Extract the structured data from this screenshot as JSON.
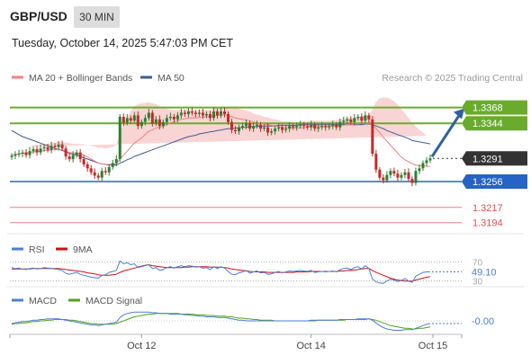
{
  "header": {
    "pair": "GBP/USD",
    "timeframe": "30 MIN",
    "timestamp": "Tuesday, October 14, 2025 5:47:03 PM CET",
    "credit": "Research © 2025 Trading Central"
  },
  "colors": {
    "candle_up": "#2e7d32",
    "candle_down": "#c62828",
    "bollinger_fill": "#f7c6c6",
    "ma20": "#f08080",
    "ma50": "#3f5b95",
    "resistance": "#6aab2e",
    "support": "#2563c7",
    "target": "#d9534f",
    "rsi": "#4a7fd4",
    "rsi_ma": "#cc1111",
    "macd": "#4a7fd4",
    "macd_signal": "#55a020",
    "arrow": "#2f5fa0",
    "current_price_bg": "#333333"
  },
  "legend": {
    "price": [
      {
        "label": "MA 20 + Bollinger Bands",
        "color": "#f08080"
      },
      {
        "label": "MA 50",
        "color": "#3f5b95"
      }
    ],
    "rsi": [
      {
        "label": "RSI",
        "color": "#4a7fd4"
      },
      {
        "label": "9MA",
        "color": "#cc1111"
      }
    ],
    "macd": [
      {
        "label": "MACD",
        "color": "#4a7fd4"
      },
      {
        "label": "MACD Signal",
        "color": "#55a020"
      }
    ]
  },
  "chart_data": [
    {
      "type": "candlestick",
      "title": "GBP/USD 30 MIN",
      "ylim": [
        1.318,
        1.34
      ],
      "x_ticks": [
        "Oct 12",
        "Oct 14",
        "Oct 15"
      ],
      "levels": [
        {
          "label": "1.3368",
          "value": 1.3368,
          "kind": "resistance",
          "style": "filled-tag"
        },
        {
          "label": "1.3344",
          "value": 1.3344,
          "kind": "resistance",
          "style": "filled-tag"
        },
        {
          "label": "1.3291",
          "value": 1.3291,
          "kind": "current",
          "style": "dark-tag"
        },
        {
          "label": "1.3256",
          "value": 1.3256,
          "kind": "support",
          "style": "filled-tag"
        },
        {
          "label": "1.3217",
          "value": 1.3217,
          "kind": "target",
          "style": "text"
        },
        {
          "label": "1.3194",
          "value": 1.3194,
          "kind": "target",
          "style": "text"
        }
      ],
      "close": [
        1.3295,
        1.3297,
        1.3298,
        1.33,
        1.3296,
        1.3302,
        1.3305,
        1.33,
        1.3306,
        1.3308,
        1.3304,
        1.331,
        1.3308,
        1.3312,
        1.3306,
        1.3294,
        1.329,
        1.3296,
        1.33,
        1.329,
        1.3282,
        1.3276,
        1.327,
        1.3265,
        1.3262,
        1.3272,
        1.327,
        1.3278,
        1.3284,
        1.329,
        1.3354,
        1.3345,
        1.3352,
        1.3348,
        1.3356,
        1.334,
        1.3346,
        1.3352,
        1.336,
        1.3344,
        1.335,
        1.334,
        1.3346,
        1.3352,
        1.3354,
        1.335,
        1.3356,
        1.336,
        1.3358,
        1.3362,
        1.336,
        1.3358,
        1.336,
        1.3356,
        1.3358,
        1.3352,
        1.3362,
        1.3356,
        1.3362,
        1.3358,
        1.3346,
        1.3334,
        1.3332,
        1.3338,
        1.334,
        1.3344,
        1.3336,
        1.334,
        1.3342,
        1.3336,
        1.3338,
        1.333,
        1.3332,
        1.3336,
        1.3338,
        1.3334,
        1.3336,
        1.334,
        1.3338,
        1.334,
        1.3342,
        1.334,
        1.3338,
        1.3342,
        1.3336,
        1.3338,
        1.334,
        1.3338,
        1.334,
        1.3342,
        1.3338,
        1.3346,
        1.3348,
        1.335,
        1.3346,
        1.3352,
        1.3354,
        1.3348,
        1.3356,
        1.335,
        1.3298,
        1.3274,
        1.3262,
        1.3258,
        1.3266,
        1.3272,
        1.3268,
        1.3262,
        1.3266,
        1.327,
        1.326,
        1.3254,
        1.3272,
        1.3276,
        1.3284,
        1.3288,
        1.3291
      ],
      "ma20": [
        1.3296,
        1.3297,
        1.3298,
        1.3299,
        1.3299,
        1.33,
        1.3301,
        1.3301,
        1.3302,
        1.3303,
        1.3303,
        1.3304,
        1.3304,
        1.3305,
        1.3304,
        1.3302,
        1.33,
        1.3299,
        1.3299,
        1.3298,
        1.3296,
        1.3293,
        1.329,
        1.3287,
        1.3284,
        1.3283,
        1.3282,
        1.3282,
        1.3282,
        1.3283,
        1.329,
        1.3296,
        1.3302,
        1.3308,
        1.3314,
        1.3318,
        1.3322,
        1.3327,
        1.3332,
        1.3334,
        1.3337,
        1.3338,
        1.334,
        1.3342,
        1.3345,
        1.3346,
        1.3348,
        1.335,
        1.3351,
        1.3352,
        1.3352,
        1.3352,
        1.3353,
        1.3354,
        1.3354,
        1.3354,
        1.3355,
        1.3356,
        1.3356,
        1.3357,
        1.3356,
        1.3354,
        1.3352,
        1.3351,
        1.335,
        1.3349,
        1.3348,
        1.3346,
        1.3345,
        1.3344,
        1.3343,
        1.3342,
        1.3341,
        1.334,
        1.3339,
        1.3338,
        1.3338,
        1.3337,
        1.3337,
        1.3337,
        1.3337,
        1.3338,
        1.3338,
        1.3339,
        1.3339,
        1.3339,
        1.3339,
        1.3339,
        1.3339,
        1.334,
        1.334,
        1.3341,
        1.3341,
        1.3342,
        1.3342,
        1.3343,
        1.3343,
        1.3344,
        1.3344,
        1.3344,
        1.3341,
        1.3336,
        1.333,
        1.3323,
        1.3317,
        1.3311,
        1.3305,
        1.3299,
        1.3293,
        1.3289,
        1.3286,
        1.3283,
        1.3281,
        1.328,
        1.328,
        1.3279,
        1.3279
      ],
      "ma50": [
        1.3333,
        1.333,
        1.3327,
        1.3324,
        1.3322,
        1.332,
        1.3318,
        1.3316,
        1.3314,
        1.3312,
        1.331,
        1.3308,
        1.3306,
        1.3305,
        1.3303,
        1.3301,
        1.3299,
        1.3297,
        1.3296,
        1.3294,
        1.3292,
        1.329,
        1.3288,
        1.3286,
        1.3284,
        1.3283,
        1.3282,
        1.3281,
        1.3281,
        1.3281,
        1.3284,
        1.3286,
        1.3289,
        1.3291,
        1.3294,
        1.3296,
        1.3298,
        1.33,
        1.3302,
        1.3304,
        1.3306,
        1.3308,
        1.331,
        1.3312,
        1.3314,
        1.3316,
        1.3318,
        1.332,
        1.3322,
        1.3324,
        1.3325,
        1.3326,
        1.3328,
        1.3329,
        1.333,
        1.3331,
        1.3332,
        1.3333,
        1.3334,
        1.3335,
        1.3336,
        1.3336,
        1.3337,
        1.3337,
        1.3338,
        1.3338,
        1.3339,
        1.3339,
        1.3339,
        1.334,
        1.334,
        1.334,
        1.334,
        1.334,
        1.3341,
        1.3341,
        1.3341,
        1.3341,
        1.3341,
        1.3341,
        1.3342,
        1.3342,
        1.3342,
        1.3342,
        1.3342,
        1.3342,
        1.3342,
        1.3342,
        1.3342,
        1.3342,
        1.3342,
        1.3342,
        1.3342,
        1.3342,
        1.3342,
        1.3342,
        1.3342,
        1.3342,
        1.3343,
        1.3343,
        1.3342,
        1.334,
        1.3338,
        1.3336,
        1.3333,
        1.3331,
        1.3329,
        1.3327,
        1.3325,
        1.3323,
        1.3321,
        1.3318,
        1.3317,
        1.3316,
        1.3315,
        1.3314,
        1.3313
      ],
      "bollinger_width": [
        0.0012,
        0.0011,
        0.001,
        0.001,
        0.0009,
        0.0009,
        0.001,
        0.001,
        0.001,
        0.001,
        0.001,
        0.0011,
        0.0011,
        0.0012,
        0.0012,
        0.0013,
        0.0014,
        0.0014,
        0.0014,
        0.0015,
        0.0016,
        0.0018,
        0.002,
        0.0022,
        0.0023,
        0.0024,
        0.0024,
        0.0025,
        0.0026,
        0.0028,
        0.004,
        0.0048,
        0.0052,
        0.0055,
        0.0056,
        0.0055,
        0.0052,
        0.0048,
        0.0044,
        0.004,
        0.0036,
        0.0032,
        0.0028,
        0.0024,
        0.002,
        0.0018,
        0.0016,
        0.0015,
        0.0014,
        0.0013,
        0.0012,
        0.0011,
        0.0011,
        0.0011,
        0.001,
        0.001,
        0.0011,
        0.0012,
        0.0012,
        0.0012,
        0.0013,
        0.0014,
        0.0015,
        0.0015,
        0.0015,
        0.0014,
        0.0014,
        0.0013,
        0.0012,
        0.0012,
        0.0011,
        0.0011,
        0.001,
        0.001,
        0.001,
        0.0009,
        0.0009,
        0.0009,
        0.0009,
        0.0009,
        0.0009,
        0.0009,
        0.0009,
        0.0009,
        0.0009,
        0.0009,
        0.0009,
        0.0009,
        0.0009,
        0.0009,
        0.0009,
        0.001,
        0.001,
        0.001,
        0.001,
        0.001,
        0.0011,
        0.0011,
        0.0012,
        0.0012,
        0.0025,
        0.004,
        0.0052,
        0.006,
        0.0066,
        0.007,
        0.0072,
        0.0073,
        0.0072,
        0.007,
        0.0066,
        0.0062,
        0.0058,
        0.0054,
        0.005,
        0.0046
      ],
      "projection": {
        "from": 1.3291,
        "to": 1.3368
      }
    },
    {
      "type": "line",
      "title": "RSI",
      "ylim": [
        20,
        80
      ],
      "levels": [
        70,
        30
      ],
      "level_labels": [
        "70",
        "30"
      ],
      "current_value_label": "49.10",
      "series": [
        {
          "name": "RSI",
          "values": [
            58,
            56,
            57,
            55,
            54,
            56,
            57,
            55,
            56,
            58,
            57,
            56,
            55,
            54,
            52,
            46,
            44,
            46,
            48,
            44,
            42,
            40,
            38,
            37,
            36,
            42,
            43,
            48,
            50,
            52,
            72,
            66,
            68,
            64,
            66,
            58,
            60,
            62,
            64,
            56,
            58,
            52,
            54,
            58,
            60,
            57,
            60,
            62,
            60,
            62,
            61,
            59,
            60,
            57,
            58,
            54,
            60,
            56,
            60,
            57,
            50,
            44,
            43,
            47,
            49,
            52,
            46,
            49,
            51,
            47,
            48,
            44,
            45,
            48,
            50,
            47,
            49,
            51,
            50,
            51,
            52,
            51,
            50,
            52,
            48,
            49,
            50,
            49,
            50,
            51,
            49,
            54,
            56,
            57,
            54,
            58,
            60,
            55,
            62,
            56,
            34,
            28,
            26,
            25,
            30,
            34,
            32,
            29,
            31,
            35,
            30,
            27,
            40,
            44,
            48,
            49,
            49.1
          ]
        },
        {
          "name": "9MA",
          "values": [
            55,
            55,
            55,
            55,
            55,
            55,
            56,
            56,
            56,
            56,
            56,
            56,
            56,
            56,
            55,
            54,
            53,
            52,
            51,
            50,
            49,
            47,
            46,
            45,
            43,
            42,
            42,
            42,
            43,
            44,
            48,
            51,
            53,
            55,
            57,
            59,
            61,
            63,
            64,
            62,
            61,
            60,
            59,
            58,
            58,
            58,
            58,
            58,
            59,
            59,
            60,
            60,
            60,
            60,
            60,
            59,
            59,
            59,
            59,
            58,
            57,
            55,
            54,
            53,
            52,
            51,
            50,
            49,
            49,
            49,
            49,
            48,
            48,
            48,
            48,
            48,
            48,
            48,
            48,
            49,
            49,
            49,
            49,
            50,
            50,
            50,
            50,
            50,
            50,
            50,
            50,
            51,
            51,
            52,
            52,
            53,
            54,
            55,
            56,
            56,
            52,
            48,
            45,
            42,
            39,
            36,
            34,
            32,
            31,
            30,
            30,
            30,
            32,
            34,
            36,
            38,
            39
          ]
        }
      ]
    },
    {
      "type": "line",
      "title": "MACD",
      "ylim": [
        -0.002,
        0.002
      ],
      "zero_label": "-0.00",
      "series": [
        {
          "name": "MACD",
          "values": [
            -0.0004,
            -0.0003,
            -0.0002,
            -0.0001,
            -0.0001,
            0.0,
            0.0001,
            0.0001,
            0.0002,
            0.0002,
            0.0003,
            0.0003,
            0.0003,
            0.0003,
            0.0002,
            0.0001,
            0.0,
            -0.0001,
            -0.0002,
            -0.0003,
            -0.0004,
            -0.0005,
            -0.0006,
            -0.0006,
            -0.0007,
            -0.0006,
            -0.0005,
            -0.0004,
            -0.0003,
            -0.0002,
            0.0005,
            0.0009,
            0.0011,
            0.0012,
            0.0013,
            0.0013,
            0.0013,
            0.0013,
            0.0013,
            0.0012,
            0.0012,
            0.0011,
            0.0011,
            0.0011,
            0.001,
            0.001,
            0.001,
            0.001,
            0.0009,
            0.0009,
            0.0008,
            0.0008,
            0.0007,
            0.0007,
            0.0006,
            0.0006,
            0.0006,
            0.0005,
            0.0005,
            0.0005,
            0.0004,
            0.0003,
            0.0002,
            0.0001,
            0.0001,
            0.0,
            0.0,
            0.0,
            0.0,
            0.0,
            0.0,
            0.0,
            0.0,
            0.0,
            0.0,
            0.0,
            0.0,
            0.0,
            0.0,
            0.0,
            0.0,
            0.0,
            0.0,
            0.0001,
            0.0001,
            0.0001,
            0.0001,
            0.0001,
            0.0001,
            0.0001,
            0.0001,
            0.0002,
            0.0002,
            0.0002,
            0.0002,
            0.0002,
            0.0003,
            0.0003,
            0.0003,
            0.0003,
            0.0001,
            -0.0003,
            -0.0007,
            -0.001,
            -0.0012,
            -0.0013,
            -0.0014,
            -0.0014,
            -0.0014,
            -0.0013,
            -0.0013,
            -0.0013,
            -0.0011,
            -0.0009,
            -0.0007,
            -0.0005,
            -0.0004
          ]
        },
        {
          "name": "MACD Signal",
          "values": [
            -0.0005,
            -0.0004,
            -0.0004,
            -0.0003,
            -0.0003,
            -0.0002,
            -0.0001,
            -0.0001,
            0.0,
            0.0,
            0.0001,
            0.0001,
            0.0002,
            0.0002,
            0.0002,
            0.0002,
            0.0001,
            0.0001,
            0.0,
            -0.0001,
            -0.0002,
            -0.0003,
            -0.0004,
            -0.0004,
            -0.0005,
            -0.0005,
            -0.0005,
            -0.0005,
            -0.0005,
            -0.0004,
            -0.0002,
            0.0,
            0.0002,
            0.0004,
            0.0006,
            0.0007,
            0.0008,
            0.0009,
            0.001,
            0.001,
            0.0011,
            0.0011,
            0.0011,
            0.0011,
            0.0011,
            0.0011,
            0.0011,
            0.001,
            0.001,
            0.001,
            0.001,
            0.0009,
            0.0009,
            0.0009,
            0.0008,
            0.0008,
            0.0008,
            0.0007,
            0.0007,
            0.0007,
            0.0006,
            0.0006,
            0.0005,
            0.0004,
            0.0004,
            0.0003,
            0.0003,
            0.0002,
            0.0002,
            0.0001,
            0.0001,
            0.0001,
            0.0001,
            0.0,
            0.0,
            0.0,
            0.0,
            0.0,
            0.0,
            0.0,
            0.0,
            0.0,
            0.0,
            0.0,
            0.0,
            0.0001,
            0.0001,
            0.0001,
            0.0001,
            0.0001,
            0.0001,
            0.0001,
            0.0001,
            0.0002,
            0.0002,
            0.0002,
            0.0002,
            0.0002,
            0.0002,
            0.0003,
            0.0002,
            0.0001,
            -0.0001,
            -0.0003,
            -0.0005,
            -0.0007,
            -0.0008,
            -0.0009,
            -0.001,
            -0.0011,
            -0.0011,
            -0.0012,
            -0.0012,
            -0.0011,
            -0.0011,
            -0.001,
            -0.0009
          ]
        }
      ]
    }
  ]
}
